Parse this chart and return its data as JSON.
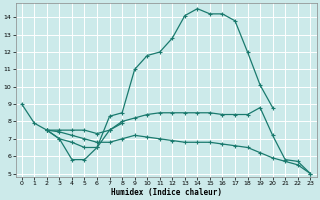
{
  "xlabel": "Humidex (Indice chaleur)",
  "background_color": "#cceaea",
  "grid_color": "#ffffff",
  "line_color": "#1a7a6e",
  "xlim": [
    -0.5,
    23.5
  ],
  "ylim": [
    4.8,
    14.8
  ],
  "yticks": [
    5,
    6,
    7,
    8,
    9,
    10,
    11,
    12,
    13,
    14
  ],
  "xticks": [
    0,
    1,
    2,
    3,
    4,
    5,
    6,
    7,
    8,
    9,
    10,
    11,
    12,
    13,
    14,
    15,
    16,
    17,
    18,
    19,
    20,
    21,
    22,
    23
  ],
  "line1_x": [
    0,
    1,
    2,
    3,
    4,
    5,
    6,
    7,
    8,
    9,
    10,
    11,
    12,
    13,
    14,
    15,
    16,
    17,
    18,
    19,
    20
  ],
  "line1_y": [
    9.0,
    7.9,
    7.5,
    7.0,
    5.8,
    5.8,
    6.5,
    8.3,
    8.5,
    11.0,
    11.8,
    12.0,
    12.8,
    14.1,
    14.5,
    14.2,
    14.2,
    13.8,
    12.0,
    10.1,
    8.8
  ],
  "line2_x": [
    2,
    3,
    4,
    5,
    6,
    7,
    8
  ],
  "line2_y": [
    7.5,
    7.0,
    6.8,
    6.5,
    6.5,
    7.5,
    7.9
  ],
  "line3_x": [
    2,
    3,
    4,
    5,
    6,
    7,
    8,
    9,
    10,
    11,
    12,
    13,
    14,
    15,
    16,
    17,
    18,
    19,
    20,
    21,
    22,
    23
  ],
  "line3_y": [
    7.5,
    7.5,
    7.5,
    7.5,
    7.3,
    7.5,
    8.0,
    8.2,
    8.4,
    8.5,
    8.5,
    8.5,
    8.5,
    8.5,
    8.4,
    8.4,
    8.4,
    8.8,
    7.2,
    5.8,
    5.7,
    5.0
  ],
  "line4_x": [
    2,
    3,
    4,
    5,
    6,
    7,
    8,
    9,
    10,
    11,
    12,
    13,
    14,
    15,
    16,
    17,
    18,
    19,
    20,
    21,
    22,
    23
  ],
  "line4_y": [
    7.5,
    7.4,
    7.2,
    7.0,
    6.8,
    6.8,
    7.0,
    7.2,
    7.1,
    7.0,
    6.9,
    6.8,
    6.8,
    6.8,
    6.7,
    6.6,
    6.5,
    6.2,
    5.9,
    5.7,
    5.5,
    5.0
  ]
}
